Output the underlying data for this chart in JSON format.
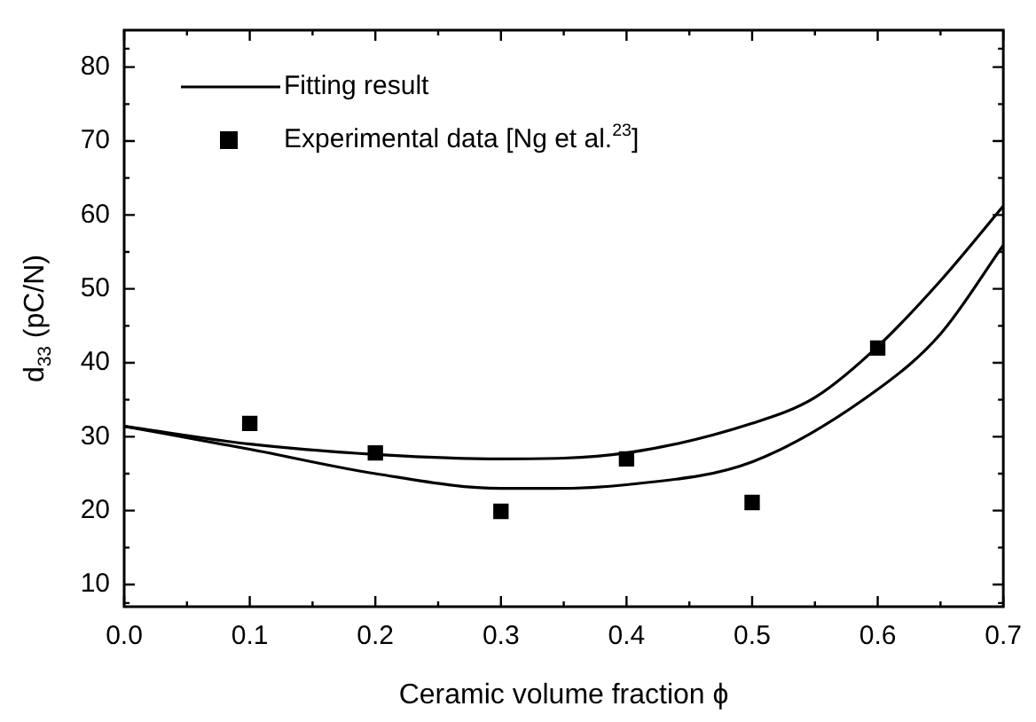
{
  "chart_data": {
    "type": "line",
    "xlabel": "Ceramic volume fraction ϕ",
    "ylabel": "d$_{33}$ (pC/N)",
    "xlim": [
      0,
      0.7
    ],
    "ylim": [
      7,
      85
    ],
    "xticks": [
      {
        "value": 0,
        "label": "0.0"
      },
      0.1,
      0.2,
      0.3,
      0.4,
      0.5,
      0.6,
      0.7
    ],
    "yticks": [
      10,
      20,
      30,
      40,
      50,
      60,
      70,
      80
    ],
    "grid": false,
    "legend": "top left",
    "series": [
      {
        "name": "Fitting result",
        "color": "#000000",
        "marker": "none",
        "x": [
          0,
          0.1,
          0.2,
          0.3,
          0.4,
          0.5,
          0.55,
          0.6,
          0.65,
          0.7
        ],
        "values": [
          31.4,
          29.0,
          27.6,
          27.0,
          27.8,
          31.8,
          35.3,
          42.2,
          51.1,
          61.2
        ]
      },
      {
        "color": "#000000",
        "marker": "none",
        "x": [
          0,
          0.1,
          0.2,
          0.3,
          0.34,
          0.4,
          0.5,
          0.6,
          0.65,
          0.7
        ],
        "values": [
          31.4,
          28.3,
          25.0,
          23.0,
          23.0,
          23.5,
          26.6,
          36.4,
          43.9,
          55.9
        ]
      },
      {
        "name": "Experimental data [Ng et al.$^{23}$]",
        "type": "scatter",
        "color": "#000000",
        "marker": "square",
        "x": [
          0.1,
          0.2,
          0.3,
          0.4,
          0.5,
          0.6
        ],
        "values": [
          31.8,
          27.8,
          19.9,
          27.0,
          21.1,
          42.0
        ]
      }
    ]
  }
}
